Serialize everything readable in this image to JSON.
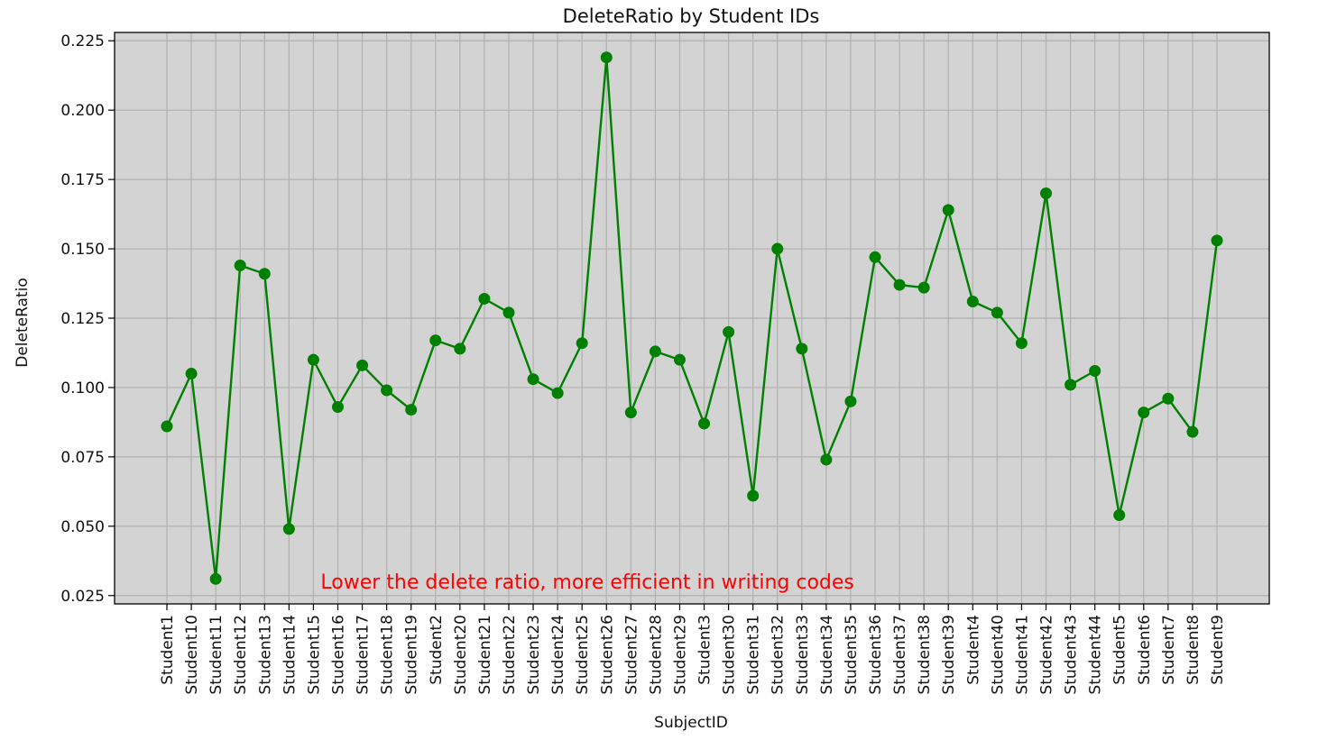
{
  "chart_data": {
    "type": "line",
    "title": "DeleteRatio by Student IDs",
    "xlabel": "SubjectID",
    "ylabel": "DeleteRatio",
    "ylim": [
      0.022,
      0.228
    ],
    "yticks": [
      "0.025",
      "0.050",
      "0.075",
      "0.100",
      "0.125",
      "0.150",
      "0.175",
      "0.200",
      "0.225"
    ],
    "grid": true,
    "background_color": "#d3d3d3",
    "line_color": "#008000",
    "marker": "circle",
    "categories": [
      "Student1",
      "Student10",
      "Student11",
      "Student12",
      "Student13",
      "Student14",
      "Student15",
      "Student16",
      "Student17",
      "Student18",
      "Student19",
      "Student2",
      "Student20",
      "Student21",
      "Student22",
      "Student23",
      "Student24",
      "Student25",
      "Student26",
      "Student27",
      "Student28",
      "Student29",
      "Student3",
      "Student30",
      "Student31",
      "Student32",
      "Student33",
      "Student34",
      "Student35",
      "Student36",
      "Student37",
      "Student38",
      "Student39",
      "Student4",
      "Student40",
      "Student41",
      "Student42",
      "Student43",
      "Student44",
      "Student5",
      "Student6",
      "Student7",
      "Student8",
      "Student9"
    ],
    "values": [
      0.086,
      0.105,
      0.031,
      0.144,
      0.141,
      0.049,
      0.11,
      0.093,
      0.108,
      0.099,
      0.092,
      0.117,
      0.114,
      0.132,
      0.127,
      0.103,
      0.098,
      0.116,
      0.219,
      0.091,
      0.113,
      0.11,
      0.087,
      0.12,
      0.061,
      0.15,
      0.114,
      0.074,
      0.095,
      0.147,
      0.137,
      0.136,
      0.164,
      0.131,
      0.127,
      0.116,
      0.17,
      0.101,
      0.106,
      0.054,
      0.091,
      0.096,
      0.084,
      0.153
    ],
    "annotation": {
      "text": "Lower the delete ratio, more efficient in writing codes",
      "color": "#ff0000",
      "x_category": "Student15",
      "y": 0.032
    }
  }
}
